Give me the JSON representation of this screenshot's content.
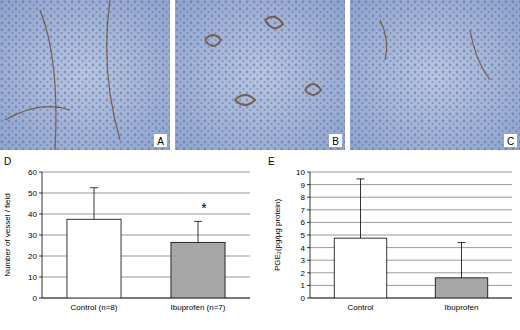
{
  "images": [
    {
      "label": "A"
    },
    {
      "label": "B"
    },
    {
      "label": "C"
    }
  ],
  "chart_data": [
    {
      "type": "bar",
      "label": "D",
      "y_label": "Number of vessel / field",
      "categories": [
        "Control (n=8)",
        "Ibuprofen (n=7)"
      ],
      "values": [
        37.5,
        26.5
      ],
      "errors": [
        15,
        10
      ],
      "colors": [
        "#ffffff",
        "#a6a6a6"
      ],
      "ylim": [
        0,
        60
      ],
      "yticks": [
        0,
        10,
        20,
        30,
        40,
        50,
        60
      ],
      "grid": true,
      "annotations": [
        {
          "text": "*",
          "category": 1
        }
      ]
    },
    {
      "type": "bar",
      "label": "E",
      "y_label": "PGE₂(pg/µg protein)",
      "categories": [
        "Control",
        "Ibuprofen"
      ],
      "values": [
        4.75,
        1.6
      ],
      "errors": [
        4.7,
        2.8
      ],
      "colors": [
        "#ffffff",
        "#a6a6a6"
      ],
      "ylim": [
        0,
        10
      ],
      "yticks": [
        0,
        1,
        2,
        3,
        4,
        5,
        6,
        7,
        8,
        9,
        10
      ],
      "grid": true,
      "annotations": []
    }
  ]
}
